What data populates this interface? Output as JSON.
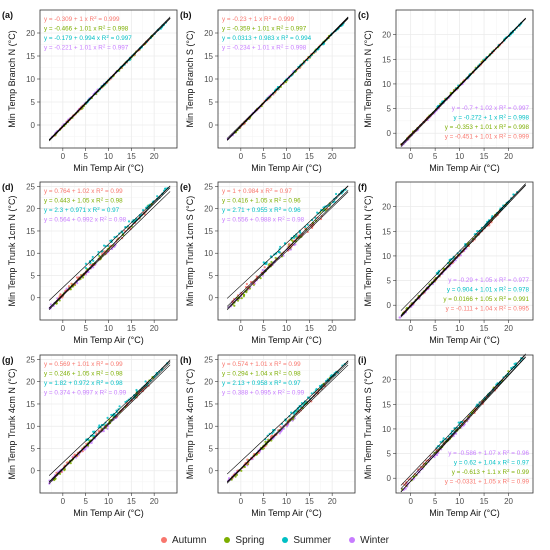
{
  "colors": {
    "Autumn": "#F8766D",
    "Spring": "#7CAE00",
    "Summer": "#00BFC4",
    "Winter": "#C77CFF",
    "fit_line": "#000000",
    "grid": "#ebebeb",
    "panel_border": "#333333"
  },
  "legend": {
    "placement": "bottom",
    "items": [
      {
        "label": "Autumn",
        "color": "#F8766D"
      },
      {
        "label": "Spring",
        "color": "#7CAE00"
      },
      {
        "label": "Summer",
        "color": "#00BFC4"
      },
      {
        "label": "Winter",
        "color": "#C77CFF"
      }
    ]
  },
  "chart_data": [
    {
      "panel": "(a)",
      "type": "scatter",
      "xlabel": "Min Temp Air (°C)",
      "ylabel": "Min Temp Branch N (°C)",
      "xlim": [
        -5,
        25
      ],
      "ylim": [
        -5,
        25
      ],
      "xticks": [
        0,
        5,
        10,
        15,
        20
      ],
      "yticks": [
        0,
        5,
        10,
        15,
        20
      ],
      "grid": true,
      "annotation_position": "top-left",
      "equations": [
        {
          "season": "Autumn",
          "text": "y = -0.309 + 1 x",
          "r2_text": "= 0.999",
          "intercept": -0.309,
          "slope": 1.0
        },
        {
          "season": "Spring",
          "text": "y = -0.466 + 1.01 x",
          "r2_text": "= 0.998",
          "intercept": -0.466,
          "slope": 1.01
        },
        {
          "season": "Summer",
          "text": "y = -0.179 + 0.994 x",
          "r2_text": "= 0.997",
          "intercept": -0.179,
          "slope": 0.994
        },
        {
          "season": "Winter",
          "text": "y = -0.221 + 1.01 x",
          "r2_text": "= 0.997",
          "intercept": -0.221,
          "slope": 1.01
        }
      ],
      "spread": 0.3
    },
    {
      "panel": "(b)",
      "type": "scatter",
      "xlabel": "Min Temp Air (°C)",
      "ylabel": "Min Temp Branch S (°C)",
      "xlim": [
        -5,
        25
      ],
      "ylim": [
        -5,
        25
      ],
      "xticks": [
        0,
        5,
        10,
        15,
        20
      ],
      "yticks": [
        0,
        5,
        10,
        15,
        20
      ],
      "grid": true,
      "annotation_position": "top-left",
      "equations": [
        {
          "season": "Autumn",
          "text": "y = -0.23 + 1 x",
          "r2_text": "= 0.999",
          "intercept": -0.23,
          "slope": 1.0
        },
        {
          "season": "Spring",
          "text": "y = -0.359 + 1.01 x",
          "r2_text": "= 0.997",
          "intercept": -0.359,
          "slope": 1.01
        },
        {
          "season": "Summer",
          "text": "y = 0.0313 + 0.983 x",
          "r2_text": "= 0.994",
          "intercept": 0.0313,
          "slope": 0.983
        },
        {
          "season": "Winter",
          "text": "y = -0.234 + 1.01 x",
          "r2_text": "= 0.998",
          "intercept": -0.234,
          "slope": 1.01
        }
      ],
      "spread": 0.35
    },
    {
      "panel": "(c)",
      "type": "scatter",
      "xlabel": "Min Temp Air (°C)",
      "ylabel": "Min Temp Branch N (°C)",
      "xlim": [
        -3,
        25
      ],
      "ylim": [
        -3,
        25
      ],
      "xticks": [
        0,
        5,
        10,
        15,
        20
      ],
      "yticks": [
        0,
        5,
        10,
        15,
        20
      ],
      "grid": true,
      "annotation_position": "bottom-right",
      "equations": [
        {
          "season": "Winter",
          "text": "y = -0.7 + 1.02 x",
          "r2_text": "= 0.997",
          "intercept": -0.7,
          "slope": 1.02
        },
        {
          "season": "Summer",
          "text": "y = -0.272 + 1 x",
          "r2_text": "= 0.998",
          "intercept": -0.272,
          "slope": 1.0
        },
        {
          "season": "Spring",
          "text": "y = -0.353 + 1.01 x",
          "r2_text": "= 0.998",
          "intercept": -0.353,
          "slope": 1.01
        },
        {
          "season": "Autumn",
          "text": "y = -0.451 + 1.01 x",
          "r2_text": "= 0.999",
          "intercept": -0.451,
          "slope": 1.01
        }
      ],
      "spread": 0.3
    },
    {
      "panel": "(d)",
      "type": "scatter",
      "xlabel": "Min Temp Air (°C)",
      "ylabel": "Min Temp Trunk 1cm N (°C)",
      "xlim": [
        -5,
        25
      ],
      "ylim": [
        -5,
        26
      ],
      "xticks": [
        0,
        5,
        10,
        15,
        20
      ],
      "yticks": [
        0,
        5,
        10,
        15,
        20,
        25
      ],
      "grid": true,
      "annotation_position": "top-left",
      "equations": [
        {
          "season": "Autumn",
          "text": "y = 0.764 + 1.02 x",
          "r2_text": "= 0.99",
          "intercept": 0.764,
          "slope": 1.02
        },
        {
          "season": "Spring",
          "text": "y = 0.443 + 1.05 x",
          "r2_text": "= 0.98",
          "intercept": 0.443,
          "slope": 1.05
        },
        {
          "season": "Summer",
          "text": "y = 2.3 + 0.971 x",
          "r2_text": "= 0.97",
          "intercept": 2.3,
          "slope": 0.971
        },
        {
          "season": "Winter",
          "text": "y = 0.564 + 0.992 x",
          "r2_text": "= 0.98",
          "intercept": 0.564,
          "slope": 0.992
        }
      ],
      "spread": 0.9
    },
    {
      "panel": "(e)",
      "type": "scatter",
      "xlabel": "Min Temp Air (°C)",
      "ylabel": "Min Temp Trunk 1cm S (°C)",
      "xlim": [
        -5,
        25
      ],
      "ylim": [
        -5,
        26
      ],
      "xticks": [
        0,
        5,
        10,
        15,
        20
      ],
      "yticks": [
        0,
        5,
        10,
        15,
        20,
        25
      ],
      "grid": true,
      "annotation_position": "top-left",
      "equations": [
        {
          "season": "Autumn",
          "text": "y = 1 + 0.984 x",
          "r2_text": "= 0.97",
          "intercept": 1.0,
          "slope": 0.984
        },
        {
          "season": "Spring",
          "text": "y = 0.416 + 1.05 x",
          "r2_text": "= 0.96",
          "intercept": 0.416,
          "slope": 1.05
        },
        {
          "season": "Summer",
          "text": "y = 2.71 + 0.955 x",
          "r2_text": "= 0.96",
          "intercept": 2.71,
          "slope": 0.955
        },
        {
          "season": "Winter",
          "text": "y = 0.556 + 0.988 x",
          "r2_text": "= 0.98",
          "intercept": 0.556,
          "slope": 0.988
        }
      ],
      "spread": 1.1
    },
    {
      "panel": "(f)",
      "type": "scatter",
      "xlabel": "Min Temp Air (°C)",
      "ylabel": "Min Temp Trunk 1cm N (°C)",
      "xlim": [
        -3,
        25
      ],
      "ylim": [
        -3,
        25
      ],
      "xticks": [
        0,
        5,
        10,
        15,
        20
      ],
      "yticks": [
        0,
        5,
        10,
        15,
        20
      ],
      "grid": true,
      "annotation_position": "bottom-right",
      "equations": [
        {
          "season": "Winter",
          "text": "y = -0.29 + 1.05 x",
          "r2_text": "= 0.977",
          "intercept": -0.29,
          "slope": 1.05
        },
        {
          "season": "Summer",
          "text": "y = 0.904 + 1.01 x",
          "r2_text": "= 0.978",
          "intercept": 0.904,
          "slope": 1.01
        },
        {
          "season": "Spring",
          "text": "y = 0.0166 + 1.05 x",
          "r2_text": "= 0.991",
          "intercept": 0.0166,
          "slope": 1.05
        },
        {
          "season": "Autumn",
          "text": "y = -0.111 + 1.04 x",
          "r2_text": "= 0.995",
          "intercept": -0.111,
          "slope": 1.04
        }
      ],
      "spread": 0.5
    },
    {
      "panel": "(g)",
      "type": "scatter",
      "xlabel": "Min Temp Air (°C)",
      "ylabel": "Min Temp Trunk 4cm N (°C)",
      "xlim": [
        -5,
        25
      ],
      "ylim": [
        -5,
        26
      ],
      "xticks": [
        0,
        5,
        10,
        15,
        20
      ],
      "yticks": [
        0,
        5,
        10,
        15,
        20,
        25
      ],
      "grid": true,
      "annotation_position": "top-left",
      "equations": [
        {
          "season": "Autumn",
          "text": "y = 0.569 + 1.01 x",
          "r2_text": "= 0.99",
          "intercept": 0.569,
          "slope": 1.01
        },
        {
          "season": "Spring",
          "text": "y = 0.246 + 1.05 x",
          "r2_text": "= 0.98",
          "intercept": 0.246,
          "slope": 1.05
        },
        {
          "season": "Summer",
          "text": "y = 1.82 + 0.972 x",
          "r2_text": "= 0.98",
          "intercept": 1.82,
          "slope": 0.972
        },
        {
          "season": "Winter",
          "text": "y = 0.374 + 0.997 x",
          "r2_text": "= 0.99",
          "intercept": 0.374,
          "slope": 0.997
        }
      ],
      "spread": 0.8
    },
    {
      "panel": "(h)",
      "type": "scatter",
      "xlabel": "Min Temp Air (°C)",
      "ylabel": "Min Temp Trunk 4cm S (°C)",
      "xlim": [
        -5,
        25
      ],
      "ylim": [
        -5,
        26
      ],
      "xticks": [
        0,
        5,
        10,
        15,
        20
      ],
      "yticks": [
        0,
        5,
        10,
        15,
        20,
        25
      ],
      "grid": true,
      "annotation_position": "top-left",
      "equations": [
        {
          "season": "Autumn",
          "text": "y = 0.574 + 1.01 x",
          "r2_text": "= 0.99",
          "intercept": 0.574,
          "slope": 1.01
        },
        {
          "season": "Spring",
          "text": "y = 0.294 + 1.04 x",
          "r2_text": "= 0.98",
          "intercept": 0.294,
          "slope": 1.04
        },
        {
          "season": "Summer",
          "text": "y = 2.13 + 0.958 x",
          "r2_text": "= 0.97",
          "intercept": 2.13,
          "slope": 0.958
        },
        {
          "season": "Winter",
          "text": "y = 0.388 + 0.995 x",
          "r2_text": "= 0.99",
          "intercept": 0.388,
          "slope": 0.995
        }
      ],
      "spread": 0.8
    },
    {
      "panel": "(i)",
      "type": "scatter",
      "xlabel": "Min Temp Air (°C)",
      "ylabel": "Min Temp Trunk 4cm S (°C)",
      "xlim": [
        -3,
        25
      ],
      "ylim": [
        -3,
        25
      ],
      "xticks": [
        0,
        5,
        10,
        15,
        20
      ],
      "yticks": [
        0,
        5,
        10,
        15,
        20
      ],
      "grid": true,
      "annotation_position": "bottom-right",
      "equations": [
        {
          "season": "Winter",
          "text": "y = -0.586 + 1.07 x",
          "r2_text": "= 0.96",
          "intercept": -0.586,
          "slope": 1.07
        },
        {
          "season": "Summer",
          "text": "y = 0.62 + 1.04 x",
          "r2_text": "= 0.97",
          "intercept": 0.62,
          "slope": 1.04
        },
        {
          "season": "Spring",
          "text": "y = -0.613 + 1.1 x",
          "r2_text": "= 0.99",
          "intercept": -0.613,
          "slope": 1.1
        },
        {
          "season": "Autumn",
          "text": "y = -0.0331 + 1.05 x",
          "r2_text": "= 0.99",
          "intercept": -0.0331,
          "slope": 1.05
        }
      ],
      "spread": 0.6
    }
  ]
}
